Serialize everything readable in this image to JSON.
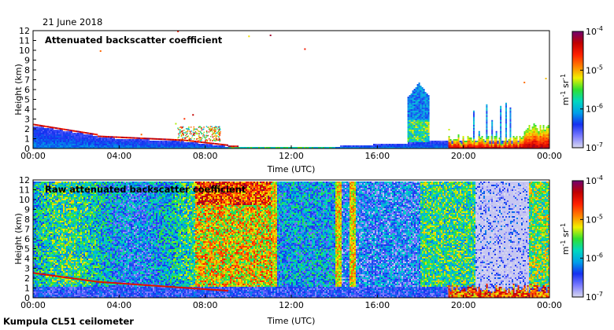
{
  "date_label": "21 June 2018",
  "footer_label": "Kumpula CL51 ceilometer",
  "chart_data": [
    {
      "type": "heatmap",
      "title": "Attenuated backscatter coefficient",
      "xlabel": "Time (UTC)",
      "ylabel": "Height (km)",
      "x_ticks": [
        "00:00",
        "04:00",
        "08:00",
        "12:00",
        "16:00",
        "20:00",
        "00:00"
      ],
      "y_ticks": [
        "0",
        "1",
        "2",
        "3",
        "4",
        "5",
        "6",
        "7",
        "8",
        "9",
        "10",
        "11",
        "12"
      ],
      "ylim": [
        0,
        12
      ],
      "colorbar": {
        "scale": "log",
        "range": [
          "10-7",
          "10-4"
        ],
        "ticks": [
          "-7",
          "-6",
          "-5",
          "-4"
        ],
        "label": "m-1 sr-1"
      }
    },
    {
      "type": "heatmap",
      "title": "Raw attenuated backscatter coefficient",
      "xlabel": "Time (UTC)",
      "ylabel": "Height (km)",
      "x_ticks": [
        "00:00",
        "04:00",
        "08:00",
        "12:00",
        "16:00",
        "20:00",
        "00:00"
      ],
      "y_ticks": [
        "0",
        "1",
        "2",
        "3",
        "4",
        "5",
        "6",
        "7",
        "8",
        "9",
        "10",
        "11",
        "12"
      ],
      "ylim": [
        0,
        12
      ],
      "colorbar": {
        "scale": "log",
        "range": [
          "10-7",
          "10-4"
        ],
        "ticks": [
          "-7",
          "-6",
          "-5",
          "-4"
        ],
        "label": "m-1 sr-1"
      }
    }
  ],
  "colors": {
    "colormap": [
      "#d9d9ee",
      "#7b7bff",
      "#1530f0",
      "#00a0e8",
      "#00d8c0",
      "#30e030",
      "#f0f000",
      "#ff8000",
      "#ff2000",
      "#c00000",
      "#700070"
    ]
  }
}
